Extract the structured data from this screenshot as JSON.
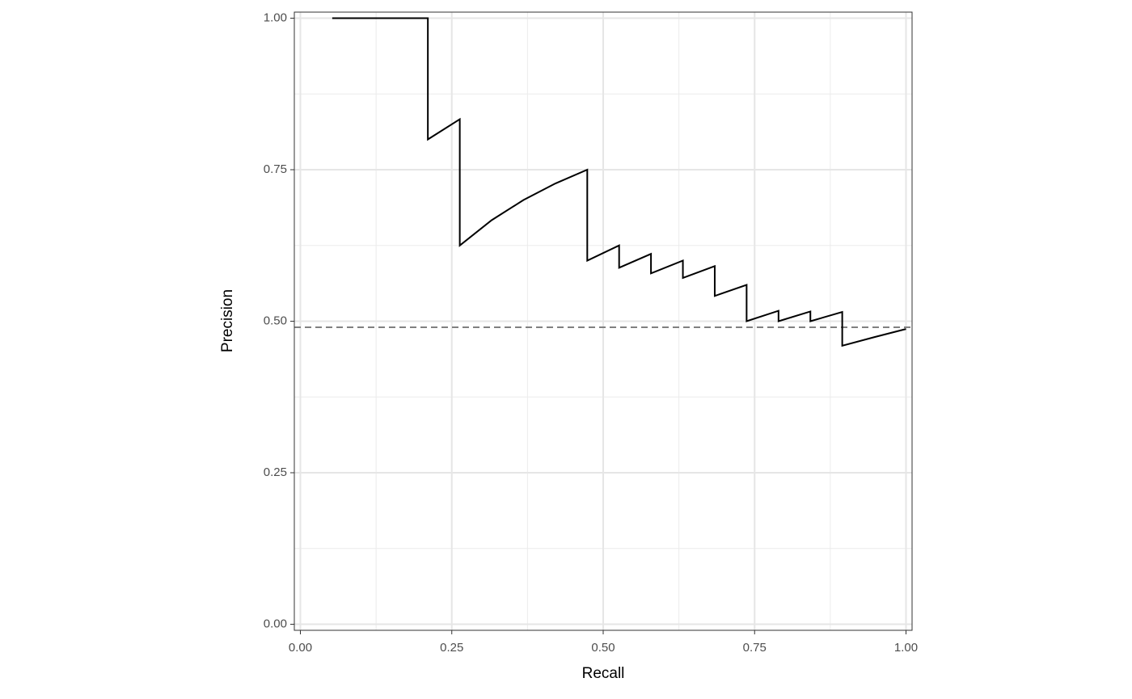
{
  "chart_data": {
    "type": "line",
    "x_label": "Recall",
    "y_label": "Precision",
    "x": [
      0.0526,
      0.2105,
      0.2105,
      0.2632,
      0.2632,
      0.3158,
      0.3684,
      0.4211,
      0.4737,
      0.4737,
      0.5263,
      0.5263,
      0.5789,
      0.5789,
      0.6316,
      0.6316,
      0.6842,
      0.6842,
      0.7368,
      0.7368,
      0.7895,
      0.7895,
      0.8421,
      0.8421,
      0.8947,
      0.8947,
      0.9474,
      1.0
    ],
    "series": [
      {
        "color": "#000000",
        "values": [
          1.0,
          1.0,
          0.8,
          0.8333,
          0.625,
          0.6667,
          0.7,
          0.7273,
          0.75,
          0.6,
          0.625,
          0.5882,
          0.6111,
          0.5789,
          0.6,
          0.5714,
          0.5909,
          0.5417,
          0.56,
          0.5,
          0.5172,
          0.5,
          0.5161,
          0.5,
          0.5152,
          0.4595,
          0.4737,
          0.4872
        ]
      }
    ],
    "hline": {
      "value": 0.49,
      "color": "#808080"
    },
    "xlim": [
      -0.01,
      1.01
    ],
    "ylim": [
      -0.01,
      1.01
    ],
    "xticks": [
      {
        "value": 0,
        "label": "0.00"
      },
      {
        "value": 0.25,
        "label": "0.25"
      },
      {
        "value": 0.5,
        "label": "0.50"
      },
      {
        "value": 0.75,
        "label": "0.75"
      },
      {
        "value": 1,
        "label": "1.00"
      }
    ],
    "yticks": [
      {
        "value": 0,
        "label": "0.00"
      },
      {
        "value": 0.25,
        "label": "0.25"
      },
      {
        "value": 0.5,
        "label": "0.50"
      },
      {
        "value": 0.75,
        "label": "0.75"
      },
      {
        "value": 1,
        "label": "1.00"
      }
    ],
    "minor_xticks": [
      0.125,
      0.375,
      0.625,
      0.875
    ],
    "minor_yticks": [
      0.125,
      0.375,
      0.625,
      0.875
    ],
    "grid": true
  }
}
